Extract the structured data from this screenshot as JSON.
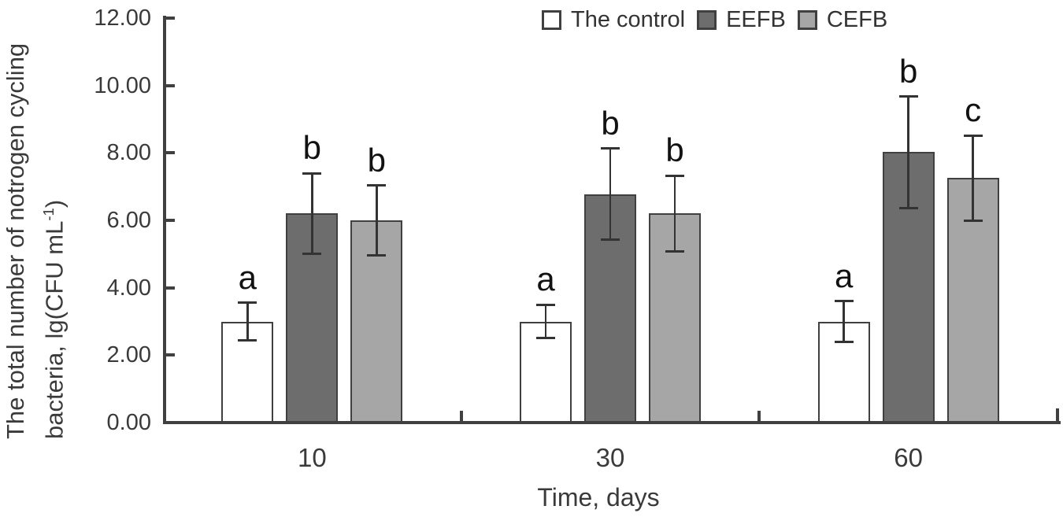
{
  "chart_data": {
    "type": "bar",
    "title": "",
    "xlabel": "Time, days",
    "ylabel_line1": "The total number of notrogen cycling",
    "ylabel_line2": {
      "pre": "bacteria, lg(CFU mL",
      "sup": "-1",
      "post": ")"
    },
    "categories": [
      "10",
      "30",
      "60"
    ],
    "series": [
      {
        "name": "The control",
        "color": "#ffffff",
        "values": [
          3.0,
          3.0,
          3.0
        ],
        "errors": [
          0.55,
          0.5,
          0.6
        ],
        "letters": [
          "a",
          "a",
          "a"
        ]
      },
      {
        "name": "EEFB",
        "color": "#6d6d6d",
        "values": [
          6.2,
          6.78,
          8.02
        ],
        "errors": [
          1.2,
          1.35,
          1.65
        ],
        "letters": [
          "b",
          "b",
          "b"
        ]
      },
      {
        "name": "CEFB",
        "color": "#a6a6a6",
        "values": [
          6.0,
          6.2,
          7.25
        ],
        "errors": [
          1.03,
          1.13,
          1.26
        ],
        "letters": [
          "b",
          "b",
          "c"
        ]
      }
    ],
    "ylim": [
      0,
      12
    ],
    "ytick_step": 2,
    "yticks": [
      "0.00",
      "2.00",
      "4.00",
      "6.00",
      "8.00",
      "10.00",
      "12.00"
    ],
    "legend_position": "top",
    "grid": false,
    "colors": {
      "axis": "#404040",
      "text": "#3a3a3a",
      "letters": "#121212",
      "error_bars": "#333333",
      "bar_border": "#404040"
    }
  }
}
